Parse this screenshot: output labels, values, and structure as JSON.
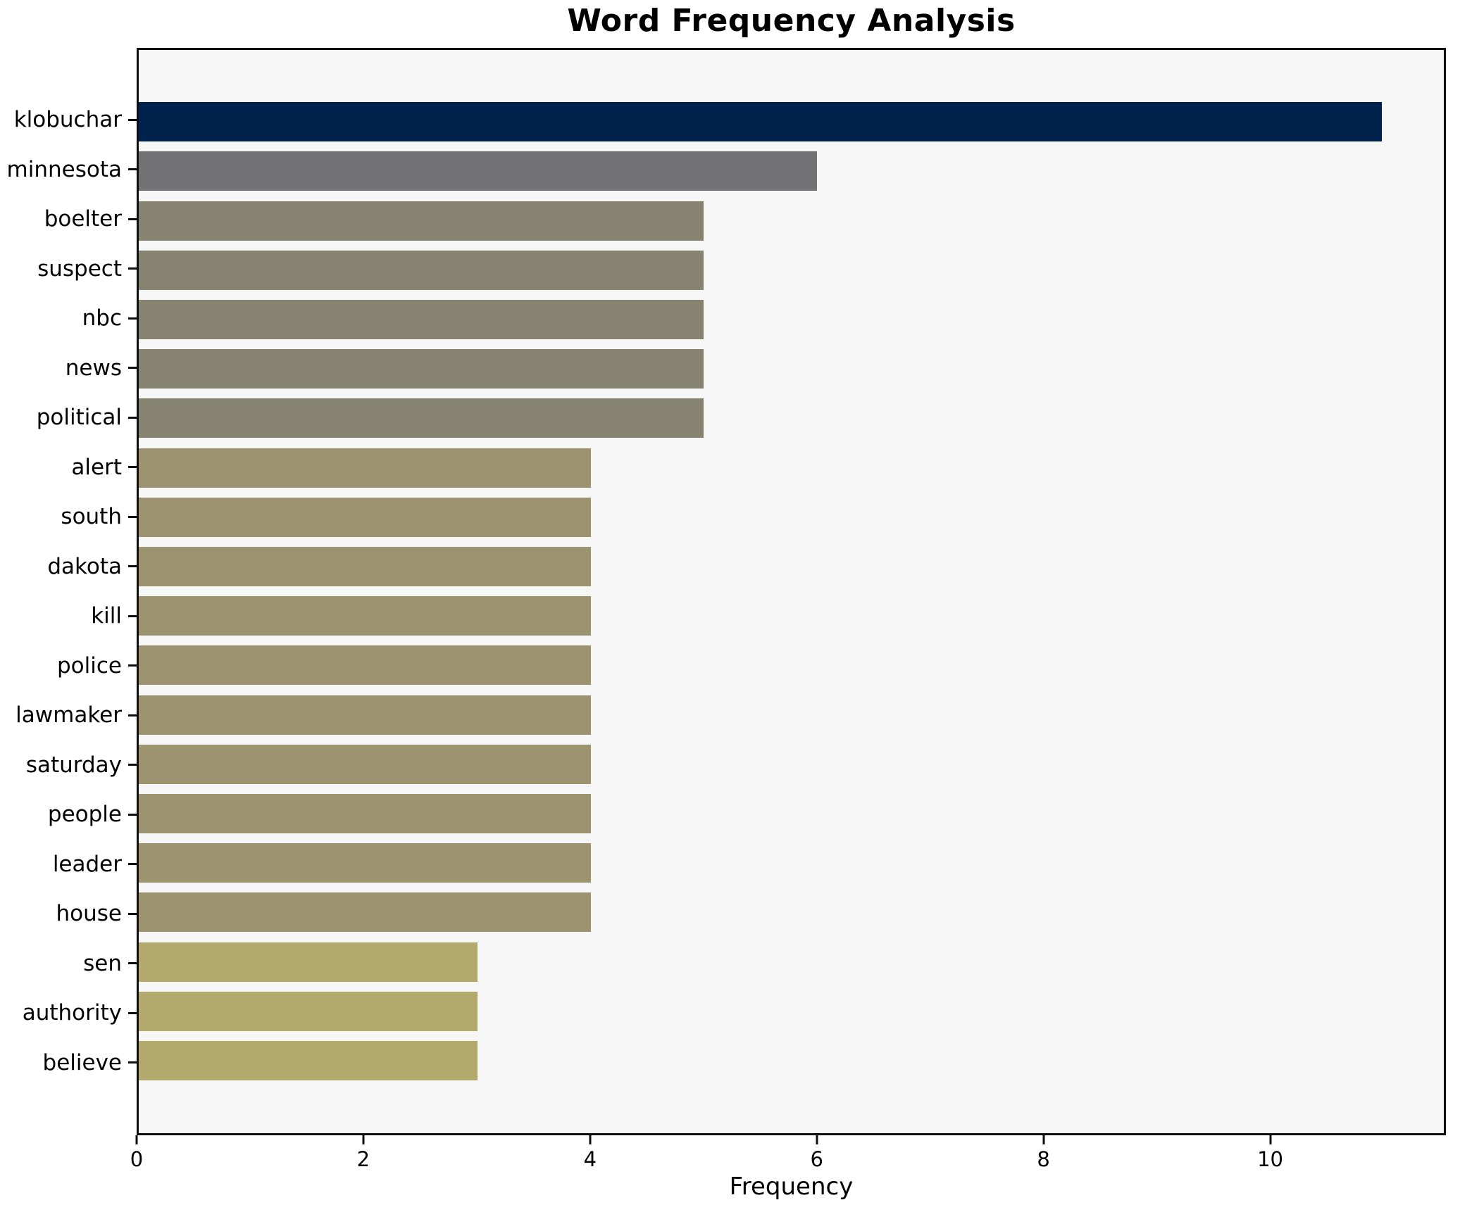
{
  "title": "Word Frequency Analysis",
  "chart_data": {
    "type": "bar",
    "orientation": "horizontal",
    "title": "Word Frequency Analysis",
    "xlabel": "Frequency",
    "ylabel": "",
    "categories": [
      "klobuchar",
      "minnesota",
      "boelter",
      "suspect",
      "nbc",
      "news",
      "political",
      "alert",
      "south",
      "dakota",
      "kill",
      "police",
      "lawmaker",
      "saturday",
      "people",
      "leader",
      "house",
      "sen",
      "authority",
      "believe"
    ],
    "values": [
      11,
      6,
      5,
      5,
      5,
      5,
      5,
      4,
      4,
      4,
      4,
      4,
      4,
      4,
      4,
      4,
      4,
      3,
      3,
      3
    ],
    "bar_colors": [
      "#01224d",
      "#727275",
      "#868370",
      "#868370",
      "#868370",
      "#868370",
      "#868370",
      "#9c9471",
      "#9c9471",
      "#9c9471",
      "#9c9471",
      "#9c9471",
      "#9c9471",
      "#9c9471",
      "#9c9471",
      "#9c9471",
      "#9c9471",
      "#b3a96c",
      "#b3a96c",
      "#b3a96c"
    ],
    "xlim": [
      0,
      11.55
    ],
    "xticks": [
      0,
      2,
      4,
      6,
      8,
      10
    ],
    "grid": false,
    "legend": false,
    "plot_bg": "#f6f6f7",
    "spine_color": "#0f0f0f"
  }
}
